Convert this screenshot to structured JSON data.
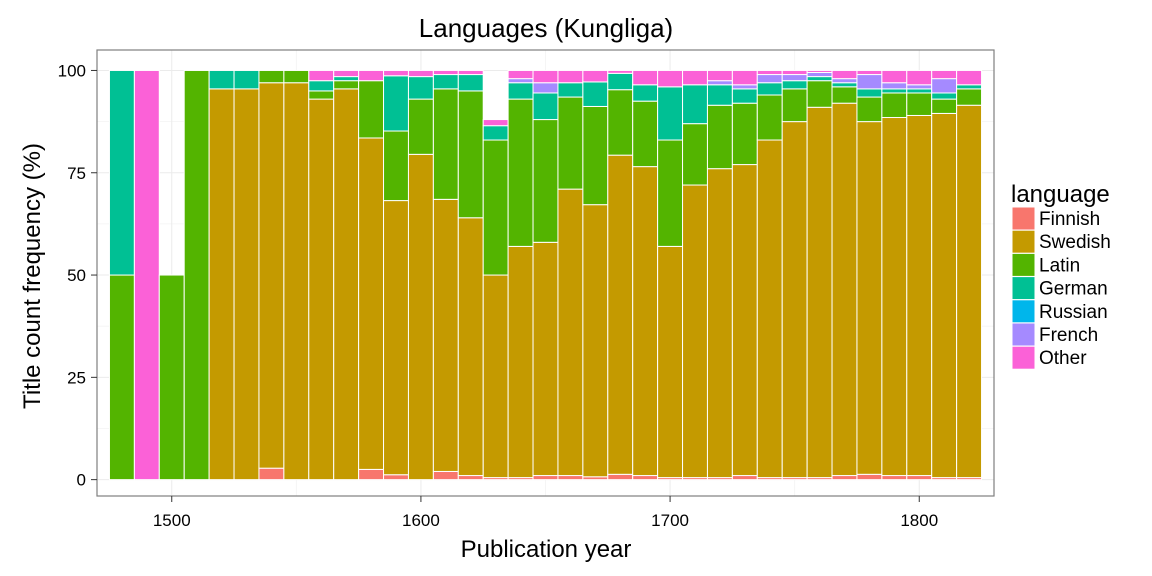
{
  "chart_data": {
    "type": "bar",
    "stacked": true,
    "title": "Languages (Kungliga)",
    "xlabel": "Publication year",
    "ylabel": "Title count frequency (%)",
    "xlim": [
      1470,
      1830
    ],
    "ylim": [
      -4,
      105
    ],
    "x_ticks": [
      1500,
      1600,
      1700,
      1800
    ],
    "y_ticks": [
      0,
      25,
      50,
      75,
      100
    ],
    "grid": true,
    "legend_title": "language",
    "legend_position": "right",
    "bin_width": 10,
    "bin_starts": [
      1475,
      1485,
      1495,
      1505,
      1515,
      1525,
      1535,
      1545,
      1555,
      1565,
      1575,
      1585,
      1595,
      1605,
      1615,
      1625,
      1635,
      1645,
      1655,
      1665,
      1675,
      1685,
      1695,
      1705,
      1715,
      1725,
      1735,
      1745,
      1755,
      1765,
      1775,
      1785,
      1795,
      1805,
      1815
    ],
    "series": [
      {
        "name": "Finnish",
        "color": "#F8766D",
        "values": [
          0,
          0,
          0,
          0,
          0,
          0,
          2.8,
          0,
          0,
          0,
          2.5,
          1.2,
          0,
          2,
          1,
          0.5,
          0.5,
          1,
          1,
          0.7,
          1.3,
          1,
          0.5,
          0.5,
          0.5,
          1,
          0.5,
          0.5,
          0.5,
          1,
          1.3,
          1,
          1,
          0.5,
          0.5
        ]
      },
      {
        "name": "Swedish",
        "color": "#C49A00",
        "values": [
          0,
          0,
          0,
          0,
          95.5,
          95.5,
          94.2,
          97,
          93,
          95.5,
          81,
          67,
          79.5,
          66.5,
          63,
          49.5,
          56.5,
          57,
          70,
          66.5,
          78,
          75.5,
          56.5,
          71.5,
          75.5,
          76,
          82.5,
          87,
          90.5,
          91,
          86.2,
          87.5,
          88,
          89,
          91
        ]
      },
      {
        "name": "Latin",
        "color": "#53B400",
        "values": [
          50,
          0,
          50,
          100,
          0,
          0,
          3,
          3,
          2,
          2,
          14,
          17,
          13.5,
          27,
          31,
          33,
          36,
          30,
          22.5,
          24,
          16,
          16,
          26,
          15,
          15.5,
          15,
          11,
          8,
          6.5,
          4,
          6,
          6,
          5.5,
          3.5,
          4
        ]
      },
      {
        "name": "German",
        "color": "#00C094",
        "values": [
          50,
          0,
          0,
          0,
          4.5,
          4.5,
          0,
          0,
          2.5,
          1,
          0,
          13.5,
          5.5,
          3.5,
          4,
          3.5,
          4,
          6.5,
          3.5,
          6,
          4,
          4,
          13,
          9.5,
          5,
          3.5,
          3,
          2,
          1,
          1,
          2,
          1,
          1,
          1.5,
          1
        ]
      },
      {
        "name": "Russian",
        "color": "#00B6EB",
        "values": [
          0,
          0,
          0,
          0,
          0,
          0,
          0,
          0,
          0,
          0,
          0,
          0,
          0,
          0,
          0,
          0,
          0,
          0,
          0,
          0,
          0,
          0,
          0,
          0,
          0,
          0,
          0,
          0,
          0,
          0,
          0,
          0,
          0,
          0,
          0
        ]
      },
      {
        "name": "French",
        "color": "#A58AFF",
        "values": [
          0,
          0,
          0,
          0,
          0,
          0,
          0,
          0,
          0,
          0,
          0,
          0,
          0,
          0,
          0,
          0,
          1,
          2.5,
          0,
          0,
          0,
          0,
          0,
          0,
          1,
          1,
          2,
          1.5,
          1,
          1,
          3.5,
          1.5,
          1,
          3.5,
          0
        ]
      },
      {
        "name": "Other",
        "color": "#FB61D7",
        "values": [
          0,
          100,
          0,
          0,
          0,
          0,
          0,
          0,
          2.5,
          1.5,
          2.5,
          1.3,
          1.5,
          1,
          1,
          1.5,
          2,
          3,
          3,
          2.8,
          0.7,
          3.5,
          4,
          3.5,
          2.5,
          3.5,
          1,
          1,
          0.5,
          2,
          1,
          3,
          3.5,
          2,
          3.5
        ]
      }
    ]
  }
}
